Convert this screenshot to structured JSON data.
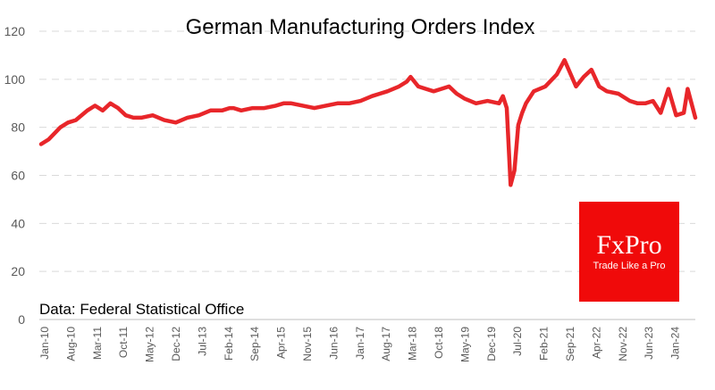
{
  "chart_data": {
    "type": "line",
    "title": "German Manufacturing Orders Index",
    "source_note": "Data: Federal Statistical Office",
    "xlabel": "",
    "ylabel": "",
    "ylim": [
      0,
      120
    ],
    "yticks": [
      0,
      20,
      40,
      60,
      80,
      100,
      120
    ],
    "grid": true,
    "x_tick_labels": [
      "Jan-10",
      "Aug-10",
      "Mar-11",
      "Oct-11",
      "May-12",
      "Dec-12",
      "Jul-13",
      "Feb-14",
      "Sep-14",
      "Apr-15",
      "Nov-15",
      "Jun-16",
      "Jan-17",
      "Aug-17",
      "Mar-18",
      "Oct-18",
      "May-19",
      "Dec-19",
      "Jul-20",
      "Feb-21",
      "Sep-21",
      "Apr-22",
      "Nov-22",
      "Jun-23",
      "Jan-24"
    ],
    "series": [
      {
        "color": "#e8262a",
        "x": [
          "2010-01",
          "2010-03",
          "2010-06",
          "2010-08",
          "2010-10",
          "2011-01",
          "2011-03",
          "2011-05",
          "2011-07",
          "2011-09",
          "2011-11",
          "2012-01",
          "2012-03",
          "2012-06",
          "2012-09",
          "2012-12",
          "2013-03",
          "2013-06",
          "2013-09",
          "2013-12",
          "2014-02",
          "2014-03",
          "2014-05",
          "2014-08",
          "2014-11",
          "2015-02",
          "2015-04",
          "2015-06",
          "2015-09",
          "2015-12",
          "2016-03",
          "2016-06",
          "2016-09",
          "2016-12",
          "2017-03",
          "2017-05",
          "2017-07",
          "2017-10",
          "2017-12",
          "2018-01",
          "2018-03",
          "2018-05",
          "2018-07",
          "2018-09",
          "2018-11",
          "2019-01",
          "2019-03",
          "2019-06",
          "2019-09",
          "2019-12",
          "2020-01",
          "2020-02",
          "2020-03",
          "2020-04",
          "2020-05",
          "2020-06",
          "2020-07",
          "2020-09",
          "2020-12",
          "2021-03",
          "2021-05",
          "2021-08",
          "2021-10",
          "2021-12",
          "2022-02",
          "2022-04",
          "2022-07",
          "2022-10",
          "2022-12",
          "2023-02",
          "2023-04",
          "2023-06",
          "2023-08",
          "2023-10",
          "2023-12",
          "2024-01",
          "2024-03"
        ],
        "values": [
          73,
          75,
          80,
          82,
          83,
          87,
          89,
          87,
          90,
          88,
          85,
          84,
          84,
          85,
          83,
          82,
          84,
          85,
          87,
          87,
          88,
          88,
          87,
          88,
          88,
          89,
          90,
          90,
          89,
          88,
          89,
          90,
          90,
          91,
          93,
          94,
          95,
          97,
          99,
          101,
          97,
          96,
          95,
          96,
          97,
          94,
          92,
          90,
          91,
          90,
          93,
          88,
          56,
          62,
          81,
          86,
          90,
          95,
          97,
          102,
          108,
          97,
          101,
          104,
          97,
          95,
          94,
          91,
          90,
          90,
          91,
          86,
          96,
          85,
          86,
          96,
          84
        ]
      }
    ]
  },
  "logo": {
    "brand": "FxPro",
    "tagline": "Trade Like a Pro"
  }
}
